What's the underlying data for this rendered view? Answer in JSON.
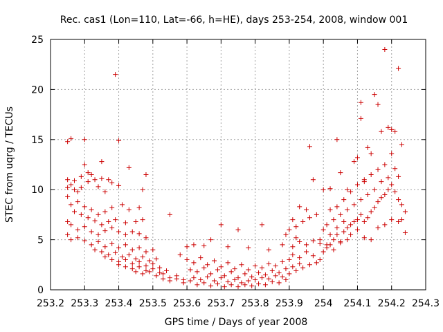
{
  "chart_data": {
    "type": "scatter",
    "title": "Rec. cas1 (Lon=110, Lat=-66, h=HE), days 253-254, 2008, window 001",
    "xlabel": "GPS time / Days of year 2008",
    "ylabel": "STEC from uqrg / TECUs",
    "xlim": [
      253.2,
      254.3
    ],
    "ylim": [
      0,
      25
    ],
    "x_ticks": [
      "253.2",
      "253.3",
      "253.4",
      "253.5",
      "253.6",
      "253.7",
      "253.8",
      "253.9",
      "254",
      "254.1",
      "254.2",
      "254.3"
    ],
    "y_ticks": [
      "0",
      "5",
      "10",
      "15",
      "20",
      "25"
    ],
    "grid": true,
    "marker": "+",
    "marker_color": "#cc0000",
    "series": [
      {
        "name": "STEC",
        "points": [
          [
            253.25,
            14.8
          ],
          [
            253.26,
            15.1
          ],
          [
            253.3,
            15.0
          ],
          [
            253.39,
            21.5
          ],
          [
            253.4,
            14.9
          ],
          [
            253.43,
            12.2
          ],
          [
            253.48,
            11.5
          ],
          [
            253.3,
            12.5
          ],
          [
            253.35,
            12.8
          ],
          [
            253.25,
            11.0
          ],
          [
            253.26,
            10.5
          ],
          [
            253.27,
            10.0
          ],
          [
            253.28,
            9.8
          ],
          [
            253.29,
            10.2
          ],
          [
            253.31,
            10.8
          ],
          [
            253.33,
            11.0
          ],
          [
            253.34,
            10.3
          ],
          [
            253.36,
            9.8
          ],
          [
            253.38,
            10.7
          ],
          [
            253.4,
            10.4
          ],
          [
            253.47,
            10.0
          ],
          [
            253.25,
            10.2
          ],
          [
            253.27,
            10.9
          ],
          [
            253.29,
            11.3
          ],
          [
            253.32,
            11.5
          ],
          [
            253.31,
            11.7
          ],
          [
            253.35,
            11.1
          ],
          [
            253.37,
            11.0
          ],
          [
            253.25,
            9.3
          ],
          [
            253.26,
            8.5
          ],
          [
            253.28,
            8.8
          ],
          [
            253.3,
            8.3
          ],
          [
            253.32,
            8.0
          ],
          [
            253.34,
            7.5
          ],
          [
            253.36,
            7.8
          ],
          [
            253.38,
            8.2
          ],
          [
            253.41,
            8.5
          ],
          [
            253.43,
            8.0
          ],
          [
            253.46,
            8.2
          ],
          [
            253.27,
            7.8
          ],
          [
            253.29,
            7.5
          ],
          [
            253.31,
            7.2
          ],
          [
            253.33,
            6.9
          ],
          [
            253.35,
            6.5
          ],
          [
            253.37,
            6.8
          ],
          [
            253.39,
            7.0
          ],
          [
            253.42,
            6.7
          ],
          [
            253.45,
            6.8
          ],
          [
            253.47,
            7.0
          ],
          [
            253.25,
            6.8
          ],
          [
            253.26,
            6.5
          ],
          [
            253.28,
            6.0
          ],
          [
            253.3,
            6.3
          ],
          [
            253.32,
            5.8
          ],
          [
            253.34,
            5.5
          ],
          [
            253.36,
            5.9
          ],
          [
            253.38,
            6.2
          ],
          [
            253.4,
            5.8
          ],
          [
            253.42,
            5.5
          ],
          [
            253.44,
            5.8
          ],
          [
            253.46,
            5.6
          ],
          [
            253.48,
            5.2
          ],
          [
            253.25,
            5.5
          ],
          [
            253.26,
            5.0
          ],
          [
            253.28,
            5.2
          ],
          [
            253.3,
            4.9
          ],
          [
            253.32,
            4.5
          ],
          [
            253.34,
            4.8
          ],
          [
            253.36,
            4.3
          ],
          [
            253.38,
            4.6
          ],
          [
            253.4,
            4.2
          ],
          [
            253.42,
            4.5
          ],
          [
            253.44,
            4.0
          ],
          [
            253.46,
            4.2
          ],
          [
            253.48,
            3.8
          ],
          [
            253.5,
            4.0
          ],
          [
            253.33,
            4.0
          ],
          [
            253.35,
            3.8
          ],
          [
            253.37,
            3.5
          ],
          [
            253.39,
            3.7
          ],
          [
            253.41,
            3.3
          ],
          [
            253.43,
            3.5
          ],
          [
            253.45,
            3.1
          ],
          [
            253.47,
            3.3
          ],
          [
            253.49,
            2.9
          ],
          [
            253.51,
            3.1
          ],
          [
            253.36,
            3.3
          ],
          [
            253.38,
            3.0
          ],
          [
            253.4,
            2.8
          ],
          [
            253.42,
            3.0
          ],
          [
            253.44,
            2.6
          ],
          [
            253.46,
            2.8
          ],
          [
            253.48,
            2.4
          ],
          [
            253.5,
            2.6
          ],
          [
            253.52,
            2.2
          ],
          [
            253.4,
            2.5
          ],
          [
            253.42,
            2.3
          ],
          [
            253.44,
            2.1
          ],
          [
            253.46,
            2.3
          ],
          [
            253.48,
            1.9
          ],
          [
            253.5,
            2.1
          ],
          [
            253.52,
            1.7
          ],
          [
            253.54,
            1.9
          ],
          [
            253.45,
            1.8
          ],
          [
            253.47,
            1.6
          ],
          [
            253.49,
            1.8
          ],
          [
            253.51,
            1.4
          ],
          [
            253.53,
            1.6
          ],
          [
            253.55,
            1.2
          ],
          [
            253.57,
            1.4
          ],
          [
            253.59,
            1.0
          ],
          [
            253.53,
            1.1
          ],
          [
            253.55,
            0.9
          ],
          [
            253.57,
            1.1
          ],
          [
            253.59,
            0.7
          ],
          [
            253.61,
            0.9
          ],
          [
            253.63,
            0.5
          ],
          [
            253.65,
            0.7
          ],
          [
            253.67,
            0.4
          ],
          [
            253.69,
            0.6
          ],
          [
            253.71,
            0.3
          ],
          [
            253.73,
            0.5
          ],
          [
            253.75,
            0.3
          ],
          [
            253.77,
            0.5
          ],
          [
            253.79,
            0.4
          ],
          [
            253.81,
            0.6
          ],
          [
            253.83,
            0.5
          ],
          [
            253.85,
            0.8
          ],
          [
            253.87,
            0.7
          ],
          [
            253.89,
            1.0
          ],
          [
            253.55,
            7.5
          ],
          [
            253.6,
            4.3
          ],
          [
            253.62,
            4.5
          ],
          [
            253.65,
            4.4
          ],
          [
            253.67,
            5.0
          ],
          [
            253.7,
            6.5
          ],
          [
            253.72,
            4.3
          ],
          [
            253.75,
            6.0
          ],
          [
            253.78,
            4.2
          ],
          [
            253.82,
            6.5
          ],
          [
            253.84,
            4.0
          ],
          [
            253.88,
            4.5
          ],
          [
            253.9,
            6.0
          ],
          [
            253.92,
            6.3
          ],
          [
            253.58,
            3.5
          ],
          [
            253.6,
            3.0
          ],
          [
            253.62,
            2.7
          ],
          [
            253.64,
            3.2
          ],
          [
            253.66,
            2.5
          ],
          [
            253.68,
            2.9
          ],
          [
            253.7,
            2.3
          ],
          [
            253.72,
            2.7
          ],
          [
            253.74,
            2.1
          ],
          [
            253.76,
            2.5
          ],
          [
            253.78,
            2.0
          ],
          [
            253.8,
            2.4
          ],
          [
            253.82,
            2.2
          ],
          [
            253.84,
            2.6
          ],
          [
            253.86,
            2.4
          ],
          [
            253.88,
            2.8
          ],
          [
            253.9,
            3.0
          ],
          [
            253.61,
            2.0
          ],
          [
            253.63,
            1.8
          ],
          [
            253.65,
            2.2
          ],
          [
            253.67,
            1.6
          ],
          [
            253.69,
            2.0
          ],
          [
            253.71,
            1.4
          ],
          [
            253.73,
            1.8
          ],
          [
            253.75,
            1.2
          ],
          [
            253.77,
            1.6
          ],
          [
            253.79,
            1.3
          ],
          [
            253.81,
            1.7
          ],
          [
            253.83,
            1.5
          ],
          [
            253.85,
            1.9
          ],
          [
            253.87,
            1.7
          ],
          [
            253.89,
            2.1
          ],
          [
            253.91,
            2.3
          ],
          [
            253.93,
            2.6
          ],
          [
            253.62,
            1.2
          ],
          [
            253.64,
            1.0
          ],
          [
            253.66,
            1.3
          ],
          [
            253.68,
            0.9
          ],
          [
            253.7,
            1.2
          ],
          [
            253.72,
            0.8
          ],
          [
            253.74,
            1.0
          ],
          [
            253.76,
            0.7
          ],
          [
            253.78,
            0.9
          ],
          [
            253.8,
            1.0
          ],
          [
            253.82,
            1.2
          ],
          [
            253.84,
            1.1
          ],
          [
            253.86,
            1.4
          ],
          [
            253.88,
            1.3
          ],
          [
            253.9,
            1.6
          ],
          [
            253.92,
            1.9
          ],
          [
            253.94,
            2.2
          ],
          [
            253.96,
            2.5
          ],
          [
            253.91,
            3.5
          ],
          [
            253.93,
            3.2
          ],
          [
            253.95,
            3.8
          ],
          [
            253.97,
            3.4
          ],
          [
            253.91,
            4.3
          ],
          [
            253.93,
            4.8
          ],
          [
            253.95,
            4.5
          ],
          [
            253.97,
            4.9
          ],
          [
            253.99,
            4.6
          ],
          [
            253.89,
            5.5
          ],
          [
            253.92,
            5.2
          ],
          [
            253.94,
            6.8
          ],
          [
            253.96,
            7.2
          ],
          [
            253.98,
            7.5
          ],
          [
            253.91,
            7.0
          ],
          [
            253.93,
            8.3
          ],
          [
            253.95,
            8.0
          ],
          [
            253.96,
            14.3
          ],
          [
            253.97,
            11.0
          ],
          [
            253.99,
            3.0
          ],
          [
            253.98,
            2.7
          ],
          [
            254.0,
            3.8
          ],
          [
            254.01,
            4.2
          ],
          [
            254.02,
            4.5
          ],
          [
            254.03,
            5.0
          ],
          [
            254.04,
            5.5
          ],
          [
            254.05,
            4.8
          ],
          [
            254.06,
            5.8
          ],
          [
            254.07,
            6.2
          ],
          [
            254.08,
            6.5
          ],
          [
            254.09,
            6.8
          ],
          [
            254.1,
            7.0
          ],
          [
            254.11,
            7.5
          ],
          [
            254.12,
            6.8
          ],
          [
            254.13,
            7.2
          ],
          [
            254.14,
            7.8
          ],
          [
            254.15,
            8.2
          ],
          [
            254.16,
            8.8
          ],
          [
            254.17,
            9.2
          ],
          [
            254.18,
            9.5
          ],
          [
            254.19,
            10.0
          ],
          [
            254.2,
            10.5
          ],
          [
            254.21,
            9.8
          ],
          [
            254.22,
            9.0
          ],
          [
            254.23,
            8.5
          ],
          [
            254.24,
            7.8
          ],
          [
            254.01,
            6.5
          ],
          [
            254.03,
            7.0
          ],
          [
            254.05,
            7.5
          ],
          [
            254.07,
            8.0
          ],
          [
            254.09,
            8.5
          ],
          [
            254.11,
            9.0
          ],
          [
            254.13,
            9.5
          ],
          [
            254.15,
            10.0
          ],
          [
            254.17,
            10.8
          ],
          [
            254.19,
            11.2
          ],
          [
            254.02,
            8.0
          ],
          [
            254.04,
            8.3
          ],
          [
            254.06,
            9.0
          ],
          [
            254.08,
            9.8
          ],
          [
            254.1,
            10.5
          ],
          [
            254.12,
            11.0
          ],
          [
            254.14,
            11.5
          ],
          [
            254.16,
            12.0
          ],
          [
            254.18,
            12.5
          ],
          [
            254.04,
            15.0
          ],
          [
            254.05,
            11.7
          ],
          [
            254.09,
            12.8
          ],
          [
            254.1,
            13.2
          ],
          [
            254.11,
            18.7
          ],
          [
            254.11,
            17.1
          ],
          [
            254.13,
            14.2
          ],
          [
            254.14,
            13.6
          ],
          [
            254.15,
            19.5
          ],
          [
            254.16,
            18.5
          ],
          [
            254.17,
            15.8
          ],
          [
            254.18,
            24.0
          ],
          [
            254.19,
            16.2
          ],
          [
            254.2,
            16.0
          ],
          [
            254.21,
            15.8
          ],
          [
            254.22,
            22.1
          ],
          [
            254.23,
            14.5
          ],
          [
            254.2,
            13.6
          ],
          [
            254.21,
            12.1
          ],
          [
            254.22,
            11.3
          ],
          [
            254.23,
            7.0
          ],
          [
            254.24,
            5.7
          ],
          [
            254.0,
            10.0
          ],
          [
            254.02,
            10.1
          ],
          [
            254.07,
            10.0
          ],
          [
            254.12,
            10.8
          ],
          [
            254.0,
            6.0
          ],
          [
            254.02,
            5.5
          ],
          [
            254.04,
            6.2
          ],
          [
            254.06,
            6.8
          ],
          [
            254.08,
            5.5
          ],
          [
            254.1,
            6.0
          ],
          [
            254.12,
            5.2
          ],
          [
            254.14,
            5.0
          ],
          [
            254.16,
            6.2
          ],
          [
            254.18,
            6.5
          ],
          [
            254.2,
            7.0
          ],
          [
            254.22,
            6.8
          ],
          [
            253.99,
            5.0
          ],
          [
            254.01,
            4.5
          ],
          [
            254.03,
            4.0
          ],
          [
            254.05,
            4.7
          ],
          [
            254.07,
            5.0
          ]
        ]
      }
    ]
  }
}
